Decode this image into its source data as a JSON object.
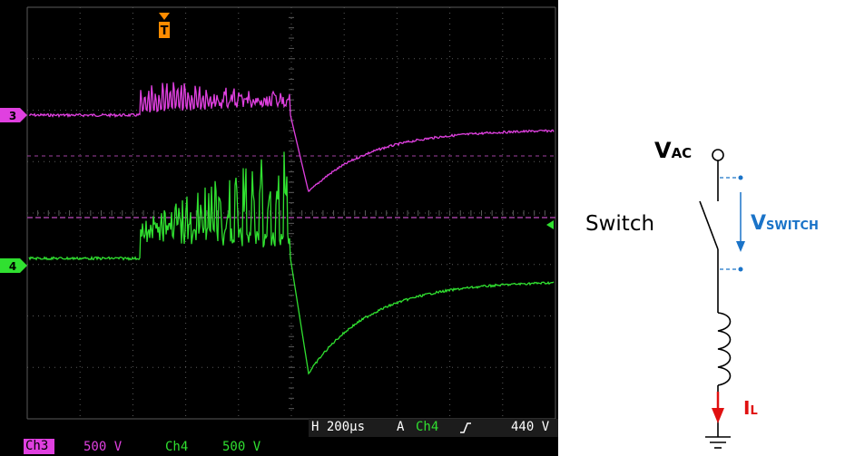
{
  "oscilloscope": {
    "trigger_marker": "T",
    "channel_markers": {
      "ch3": "3",
      "ch4": "4"
    },
    "timebase": "H 200µs",
    "trigger_info": {
      "prefix": "A",
      "channel": "Ch4",
      "slope_icon": "rising-edge-icon",
      "level": "440 V"
    },
    "channels": [
      {
        "name": "Ch3",
        "scale": "500 V",
        "color": "#e040e0"
      },
      {
        "name": "Ch4",
        "scale": "500 V",
        "color": "#30e030"
      }
    ],
    "colors": {
      "background": "#000000",
      "grid": "#5a5a5a",
      "trigger": "#ff8c00",
      "text": "#ffffff"
    }
  },
  "circuit": {
    "vac_label": {
      "main": "V",
      "sub": "AC"
    },
    "switch_label": "Switch",
    "vswitch_label": {
      "main": "V",
      "sub": "SWITCH"
    },
    "il_label": {
      "main": "I",
      "sub": "L"
    },
    "colors": {
      "wire": "#000000",
      "vswitch": "#1a73c8",
      "il": "#e01010"
    }
  }
}
